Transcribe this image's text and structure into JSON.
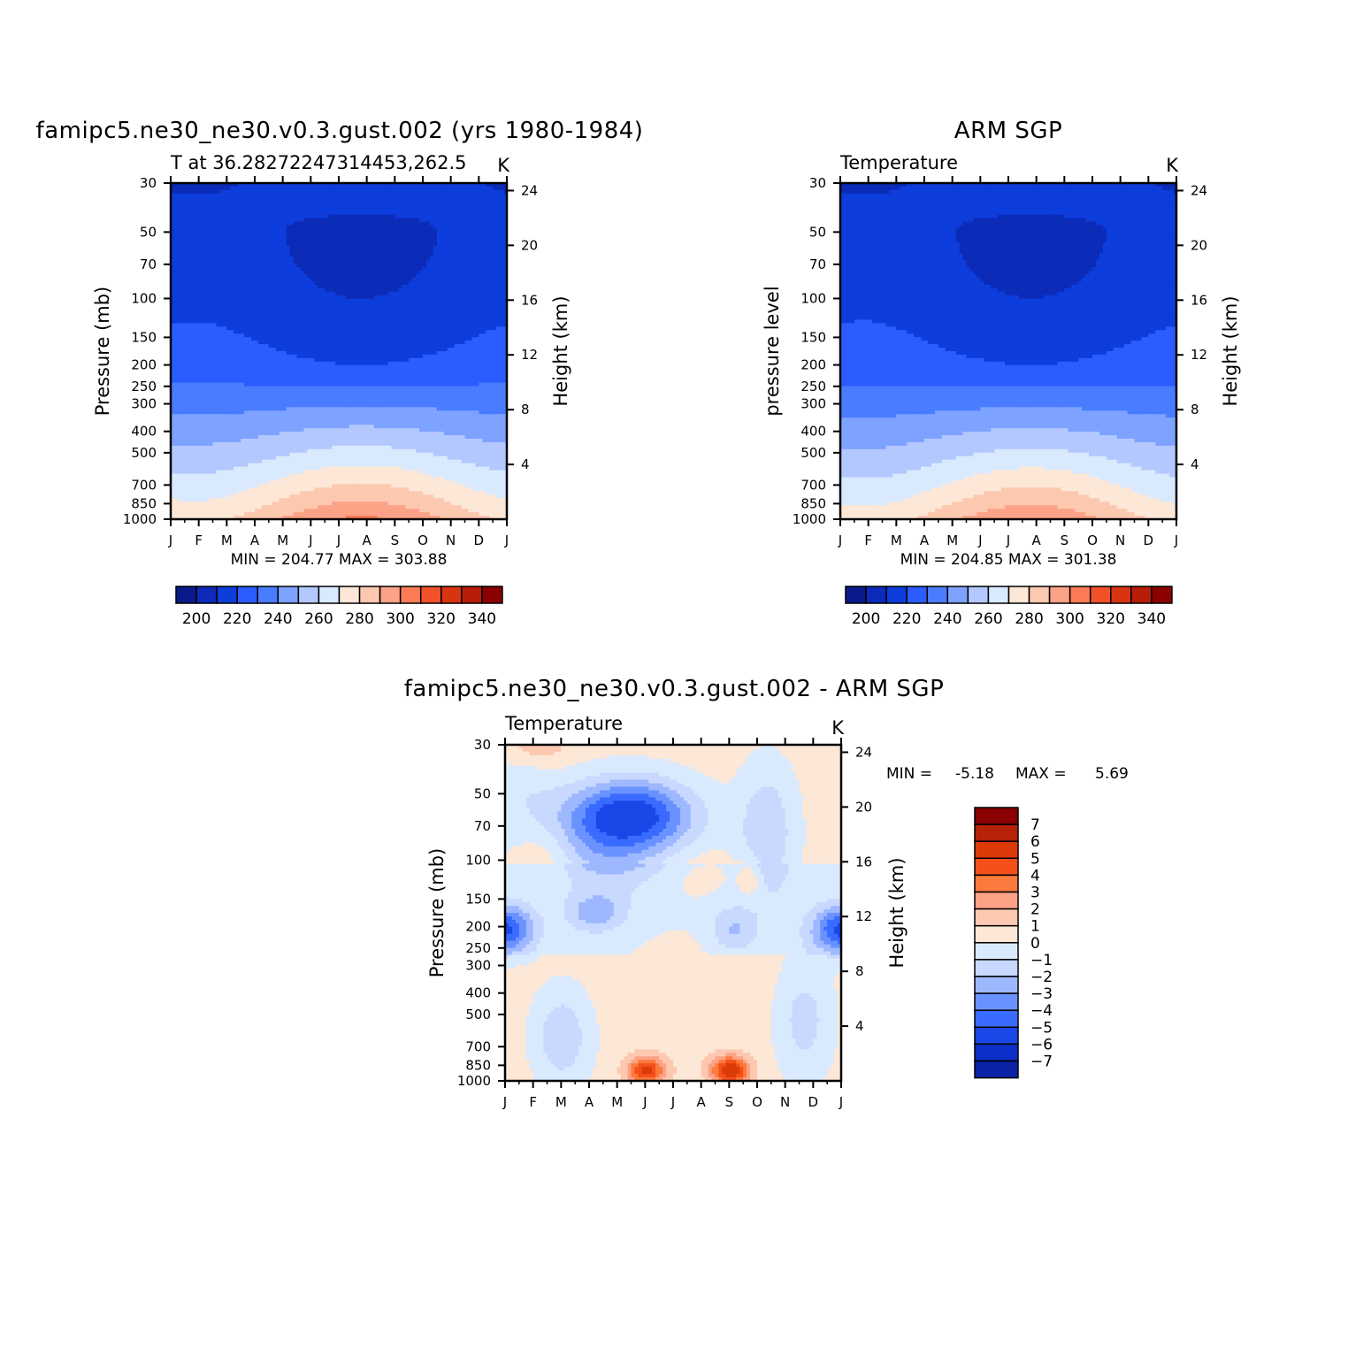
{
  "figure_title": "",
  "chart_data": [
    {
      "type": "heatmap",
      "title": "famipc5.ne30_ne30.v0.3.gust.002 (yrs 1980-1984)",
      "subtitle_left": "T at 36.28272247314453,262.5",
      "units": "K",
      "ylabel": "Pressure (mb)",
      "y2label": "Height (km)",
      "x_ticks": [
        "J",
        "F",
        "M",
        "A",
        "M",
        "J",
        "J",
        "A",
        "S",
        "O",
        "N",
        "D",
        "J"
      ],
      "y_ticks": [
        "30",
        "50",
        "70",
        "100",
        "150",
        "200",
        "250",
        "300",
        "400",
        "500",
        "700",
        "850",
        "1000"
      ],
      "y2_ticks": [
        "24",
        "20",
        "16",
        "12",
        "8",
        "4"
      ],
      "stats_text": "MIN = 204.77 MAX = 303.88",
      "min": 204.77,
      "max": 303.88,
      "colorbar_labels": [
        "200",
        "220",
        "240",
        "260",
        "280",
        "300",
        "320",
        "340"
      ],
      "surface_peak": 303.88,
      "tropopause_min": 204.77
    },
    {
      "type": "heatmap",
      "title": "ARM SGP",
      "subtitle_left": "Temperature",
      "units": "K",
      "ylabel": "pressure level",
      "y2label": "Height (km)",
      "x_ticks": [
        "J",
        "F",
        "M",
        "A",
        "M",
        "J",
        "J",
        "A",
        "S",
        "O",
        "N",
        "D",
        "J"
      ],
      "y_ticks": [
        "30",
        "50",
        "70",
        "100",
        "150",
        "200",
        "250",
        "300",
        "400",
        "500",
        "700",
        "850",
        "1000"
      ],
      "y2_ticks": [
        "24",
        "20",
        "16",
        "12",
        "8",
        "4"
      ],
      "stats_text": "MIN = 204.85 MAX = 301.38",
      "min": 204.85,
      "max": 301.38,
      "colorbar_labels": [
        "200",
        "220",
        "240",
        "260",
        "280",
        "300",
        "320",
        "340"
      ],
      "surface_peak": 301.38,
      "tropopause_min": 204.85
    },
    {
      "type": "heatmap",
      "title": "famipc5.ne30_ne30.v0.3.gust.002 - ARM SGP",
      "subtitle_left": "Temperature",
      "units": "K",
      "ylabel": "Pressure (mb)",
      "y2label": "Height (km)",
      "x_ticks": [
        "J",
        "F",
        "M",
        "A",
        "M",
        "J",
        "J",
        "A",
        "S",
        "O",
        "N",
        "D",
        "J"
      ],
      "y_ticks": [
        "30",
        "50",
        "70",
        "100",
        "150",
        "200",
        "250",
        "300",
        "400",
        "500",
        "700",
        "850",
        "1000"
      ],
      "y2_ticks": [
        "24",
        "20",
        "16",
        "12",
        "8",
        "4"
      ],
      "stats_min_label": "MIN =",
      "stats_min_value": "-5.18",
      "stats_max_label": "MAX =",
      "stats_max_value": "5.69",
      "min": -5.18,
      "max": 5.69,
      "colorbar_labels": [
        "7",
        "6",
        "5",
        "4",
        "3",
        "2",
        "1",
        "0",
        "-1",
        "-2",
        "-3",
        "-4",
        "-5",
        "-6",
        "-7"
      ]
    }
  ],
  "colors": {
    "abs_palette": [
      "#0a1a8a",
      "#0b2bb8",
      "#0d3ddb",
      "#2a5cff",
      "#4a7cff",
      "#7ea2ff",
      "#b3c8ff",
      "#daeafe",
      "#fde7d6",
      "#fdc8b0",
      "#fca286",
      "#fc7a55",
      "#f2522a",
      "#d93412",
      "#b81d0a",
      "#8b0000"
    ],
    "diff_palette": [
      "#00008b",
      "#0a22a6",
      "#0b2fc8",
      "#1a47e8",
      "#3a6bff",
      "#6a92ff",
      "#9eb8ff",
      "#c8d8ff",
      "#daeafe",
      "#fde7d6",
      "#fdc8b0",
      "#fca286",
      "#fc7a3d",
      "#f5501a",
      "#dd3a0a",
      "#b52208",
      "#8b0000"
    ]
  }
}
